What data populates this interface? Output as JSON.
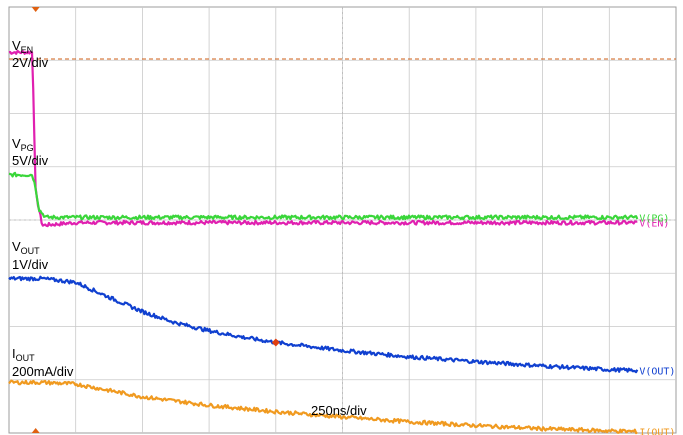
{
  "chart_data": {
    "type": "line",
    "timebase": "250ns/div",
    "grid": true,
    "divisions": {
      "x": 10,
      "y": 8
    },
    "series": [
      {
        "name": "V(EN)",
        "label_main": "V",
        "label_sub": "EN",
        "scale": "2V/div",
        "color": "#e020b0",
        "x": [
          0,
          0.35,
          0.4,
          0.5,
          1.0,
          5.0,
          10.0
        ],
        "y": [
          3.15,
          3.15,
          0.5,
          -0.1,
          -0.05,
          -0.05,
          -0.05
        ]
      },
      {
        "name": "V(PG)",
        "label_main": "V",
        "label_sub": "PG",
        "scale": "5V/div",
        "color": "#3ad63a",
        "x": [
          0,
          0.35,
          0.4,
          0.45,
          0.55,
          1.0,
          5.0,
          10.0
        ],
        "y": [
          0.85,
          0.85,
          0.6,
          0.2,
          0.05,
          0.05,
          0.05,
          0.05
        ]
      },
      {
        "name": "V(OUT)",
        "label_main": "V",
        "label_sub": "OUT",
        "scale": "1V/div",
        "color": "#1040d0",
        "x": [
          0,
          0.5,
          1.0,
          1.5,
          2.0,
          2.5,
          3.0,
          3.5,
          4.0,
          5.0,
          6.0,
          7.0,
          8.0,
          9.0,
          10.0
        ],
        "y": [
          -1.1,
          -1.1,
          -1.17,
          -1.45,
          -1.72,
          -1.93,
          -2.08,
          -2.2,
          -2.3,
          -2.45,
          -2.57,
          -2.66,
          -2.74,
          -2.81,
          -2.85
        ]
      },
      {
        "name": "I(OUT)",
        "label_main": "I",
        "label_sub": "OUT",
        "scale": "200mA/div",
        "color": "#f09a20",
        "x": [
          0,
          0.5,
          1.0,
          1.5,
          2.0,
          3.0,
          4.0,
          5.0,
          6.0,
          7.0,
          8.0,
          9.0,
          10.0
        ],
        "y": [
          -3.05,
          -3.05,
          -3.08,
          -3.2,
          -3.32,
          -3.48,
          -3.6,
          -3.7,
          -3.79,
          -3.86,
          -3.92,
          -3.96,
          -3.99
        ]
      }
    ]
  }
}
